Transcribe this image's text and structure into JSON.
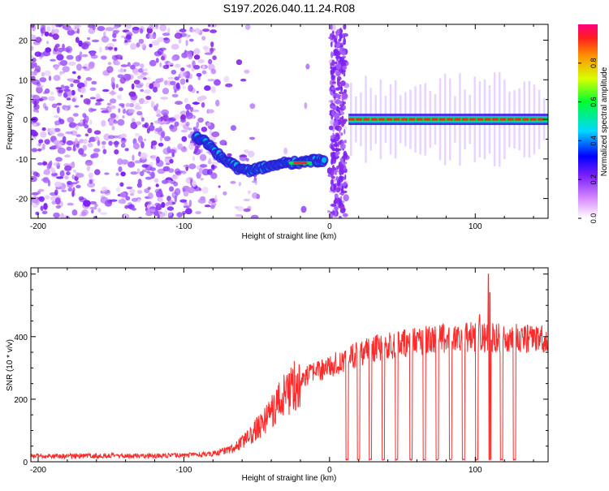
{
  "figure_title": "S197.2026.040.11.24.R08",
  "chart_data": [
    {
      "type": "heatmap",
      "title": "S197.2026.040.11.24.R08",
      "xlabel": "Height of straight line (km)",
      "ylabel": "Frequency (Hz)",
      "xlim": [
        -205,
        150
      ],
      "ylim": [
        -25,
        24
      ],
      "x_ticks": [
        -200,
        -100,
        0,
        100
      ],
      "y_ticks": [
        20,
        10,
        0,
        -10,
        -20
      ],
      "colorbar": {
        "label": "Normalized spectral amplitude",
        "range": [
          0.0,
          1.0
        ],
        "ticks": [
          "0.0",
          "0.2",
          "0.4",
          "0.6",
          "0.8"
        ]
      },
      "ridge_trace": [
        {
          "x": -92,
          "y": -4.5
        },
        {
          "x": -86,
          "y": -5.5
        },
        {
          "x": -80,
          "y": -7.5
        },
        {
          "x": -74,
          "y": -9.5
        },
        {
          "x": -68,
          "y": -11
        },
        {
          "x": -62,
          "y": -12.5
        },
        {
          "x": -56,
          "y": -13
        },
        {
          "x": -50,
          "y": -12.5
        },
        {
          "x": -44,
          "y": -12
        },
        {
          "x": -38,
          "y": -11.5
        },
        {
          "x": -32,
          "y": -11
        },
        {
          "x": -26,
          "y": -11
        },
        {
          "x": -20,
          "y": -11
        },
        {
          "x": -14,
          "y": -10.5
        },
        {
          "x": -8,
          "y": -10.5
        },
        {
          "x": -3,
          "y": -10.5
        }
      ],
      "tone_line": {
        "x_start": 13,
        "x_end": 150,
        "y": 0
      }
    },
    {
      "type": "line",
      "series_name": "SNR",
      "xlabel": "Height of straight line (km)",
      "ylabel": "SNR (10 * v/v)",
      "xlim": [
        -205,
        150
      ],
      "ylim": [
        0,
        620
      ],
      "x_ticks": [
        -200,
        -100,
        0,
        100
      ],
      "y_ticks": [
        0,
        200,
        400,
        600
      ],
      "envelope": [
        {
          "x": -205,
          "y": 18
        },
        {
          "x": -100,
          "y": 20
        },
        {
          "x": -80,
          "y": 25
        },
        {
          "x": -65,
          "y": 45
        },
        {
          "x": -55,
          "y": 80
        },
        {
          "x": -45,
          "y": 130
        },
        {
          "x": -35,
          "y": 190
        },
        {
          "x": -25,
          "y": 240
        },
        {
          "x": -15,
          "y": 275
        },
        {
          "x": -5,
          "y": 295
        },
        {
          "x": 5,
          "y": 315
        },
        {
          "x": 15,
          "y": 335
        },
        {
          "x": 25,
          "y": 355
        },
        {
          "x": 40,
          "y": 370
        },
        {
          "x": 60,
          "y": 385
        },
        {
          "x": 80,
          "y": 395
        },
        {
          "x": 100,
          "y": 400
        },
        {
          "x": 120,
          "y": 395
        },
        {
          "x": 150,
          "y": 390
        }
      ],
      "dropouts_x": [
        12,
        20,
        28,
        37,
        46,
        56,
        65,
        74,
        83,
        92,
        101,
        110,
        118,
        127
      ],
      "dropout_level": 5,
      "spikes": [
        {
          "x": 109,
          "y": 600
        },
        {
          "x": 110,
          "y": 540
        },
        {
          "x": 103,
          "y": 470
        }
      ],
      "color": "#ff2a2a"
    }
  ]
}
